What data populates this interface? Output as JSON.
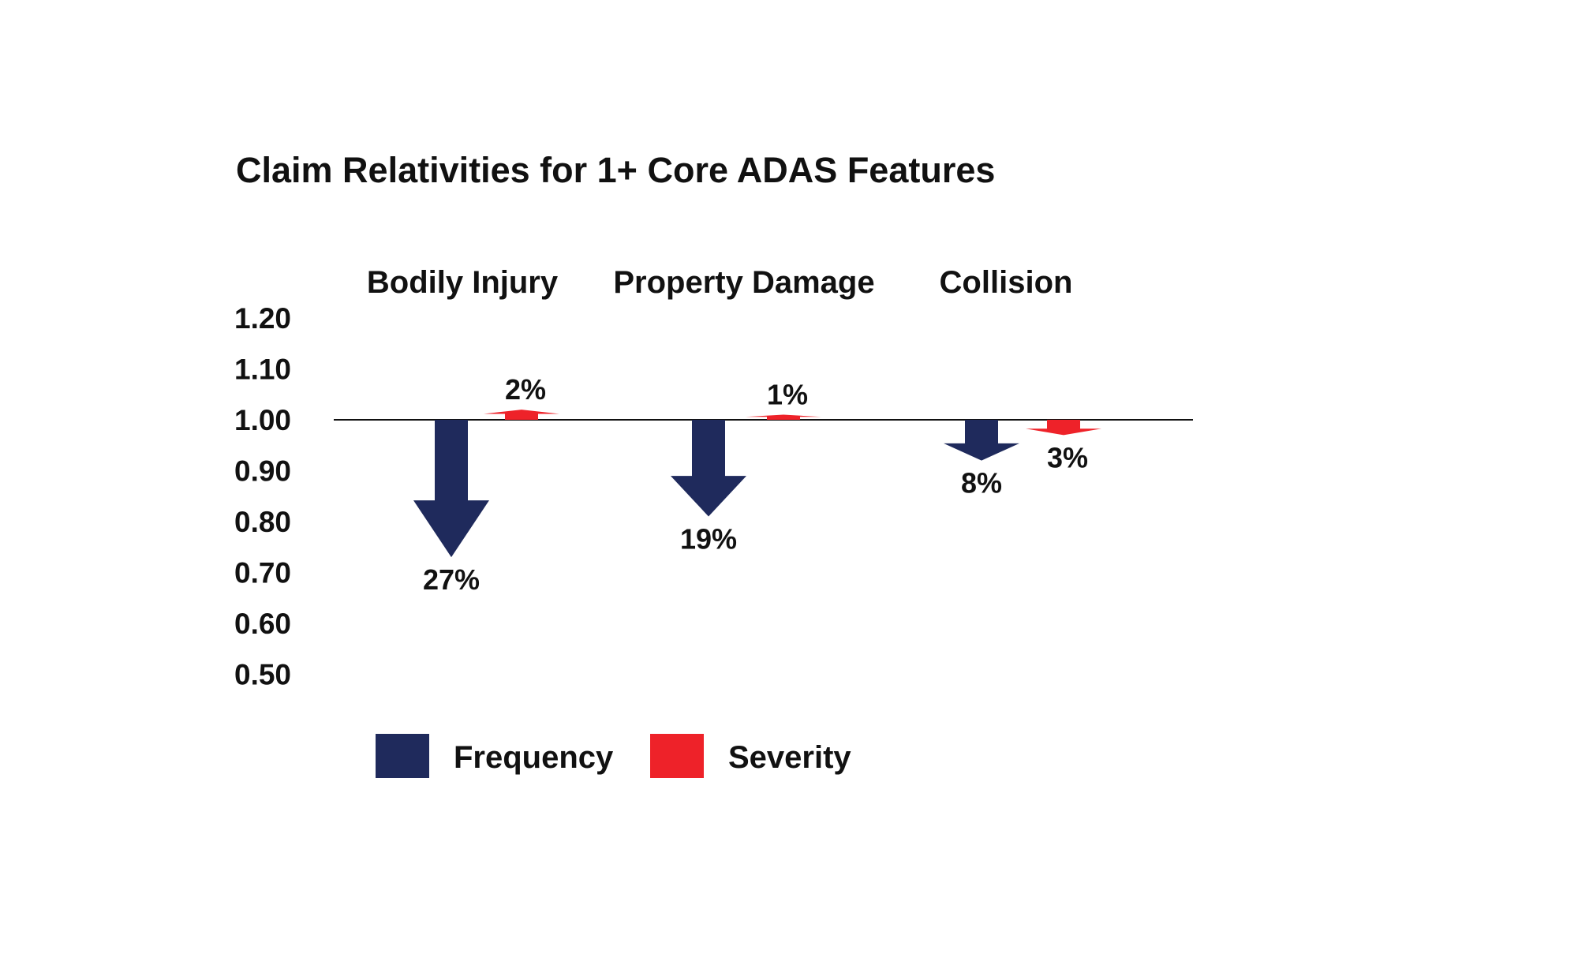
{
  "chart_data": {
    "type": "bar",
    "title": "Claim Relativities for 1+ Core ADAS Features",
    "categories": [
      "Bodily Injury",
      "Property Damage",
      "Collision"
    ],
    "baseline": 1.0,
    "ylim": [
      0.5,
      1.2
    ],
    "yticks": [
      "1.20",
      "1.10",
      "1.00",
      "0.90",
      "0.80",
      "0.70",
      "0.60",
      "0.50"
    ],
    "grid": false,
    "legend_position": "bottom",
    "series": [
      {
        "name": "Frequency",
        "color": "#1f2a5c",
        "values": [
          0.73,
          0.81,
          0.92
        ],
        "labels": [
          "27%",
          "19%",
          "8%"
        ]
      },
      {
        "name": "Severity",
        "color": "#ee2229",
        "values": [
          1.02,
          1.01,
          0.97
        ],
        "labels": [
          "2%",
          "1%",
          "3%"
        ]
      }
    ]
  }
}
